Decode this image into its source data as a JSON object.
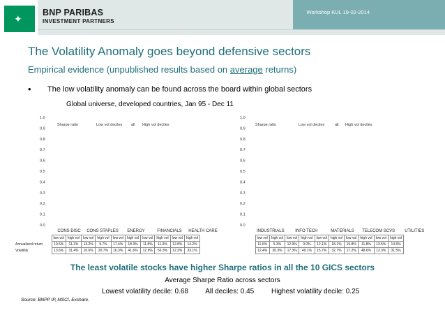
{
  "header": {
    "brand_line1": "BNP PARIBAS",
    "brand_line2": "INVESTMENT PARTNERS",
    "workshop": "Workshop KUL 19-02-2014",
    "brand_color": "#00965e",
    "accent_color": "#1f6f7a"
  },
  "slide": {
    "title": "The Volatility Anomaly goes beyond defensive sectors",
    "subtitle_pre": "Empirical evidence (unpublished results based on ",
    "subtitle_u": "average",
    "subtitle_post": " returns)",
    "bullet_symbol": "•",
    "bullet": "The low volatility anomaly can be found across the board within global sectors",
    "universe": "Global universe, developed countries, Jan 95 - Dec 11"
  },
  "chart_data": [
    {
      "type": "bar",
      "title": "Sharpe ratio",
      "legend": [
        "Low vol deciles",
        "all",
        "High vol deciles"
      ],
      "ylim": [
        0.0,
        1.0
      ],
      "yticks": [
        "0.0",
        "0.1",
        "0.2",
        "0.3",
        "0.4",
        "0.5",
        "0.6",
        "0.7",
        "0.8",
        "0.9",
        "1.0"
      ],
      "categories": [
        "CONS DISC",
        "CONS STAPLES",
        "ENERGY",
        "FINANCIALS",
        "HEALTH CARE"
      ],
      "table": {
        "col_headers": [
          "low vol",
          "high vol",
          "low vol",
          "high vol",
          "low vol",
          "high vol",
          "low vol",
          "high vol",
          "low vol",
          "high vol"
        ],
        "rows": [
          {
            "label": "Annualised return",
            "values": [
              "10.5%",
              "11.1%",
              "13.2%",
              "9.7%",
              "17.4%",
              "18.3%",
              "11.8%",
              "11.9%",
              "12.8%",
              "14.2%"
            ]
          },
          {
            "label": "Volatility",
            "values": [
              "13.6%",
              "31.4%",
              "10.6%",
              "20.7%",
              "16.3%",
              "41.6%",
              "12.9%",
              "56.3%",
              "12.3%",
              "33.1%"
            ]
          }
        ]
      }
    },
    {
      "type": "bar",
      "title": "Sharpe ratio",
      "legend": [
        "Low vol deciles",
        "all",
        "High vol deciles"
      ],
      "ylim": [
        0.0,
        1.0
      ],
      "yticks": [
        "0.0",
        "0.1",
        "0.2",
        "0.3",
        "0.4",
        "0.5",
        "0.6",
        "0.7",
        "0.8",
        "0.9",
        "1.0"
      ],
      "categories": [
        "INDUSTRIALS",
        "INFO TECH",
        "MATERIALS",
        "TELECOM SCVS",
        "UTILITIES"
      ],
      "table": {
        "col_headers": [
          "low vol",
          "high vol",
          "low vol",
          "high vol",
          "low vol",
          "high vol",
          "low vol",
          "high vol",
          "low vol",
          "high vol"
        ],
        "rows": [
          {
            "label": "",
            "values": [
              "11.6%",
              "5.3%",
              "12.9%",
              "9.0%",
              "12.1%",
              "18.1%",
              "15.8%",
              "11.8%",
              "13.5%",
              "14.5%"
            ]
          },
          {
            "label": "",
            "values": [
              "12.4%",
              "30.3%",
              "17.3%",
              "49.1%",
              "15.7%",
              "32.7%",
              "17.2%",
              "48.6%",
              "12.3%",
              "31.5%"
            ]
          }
        ]
      }
    }
  ],
  "conclusion": "The least volatile stocks have higher Sharpe ratios in all the 10 GICS sectors",
  "average": {
    "title": "Average Sharpe Ratio across sectors",
    "lowest": "Lowest volatility decile: 0.68",
    "all": "All deciles: 0.45",
    "highest": "Highest volatility decile: 0.25"
  },
  "source": "Source: BNPP IP, MSCI, Exshare."
}
